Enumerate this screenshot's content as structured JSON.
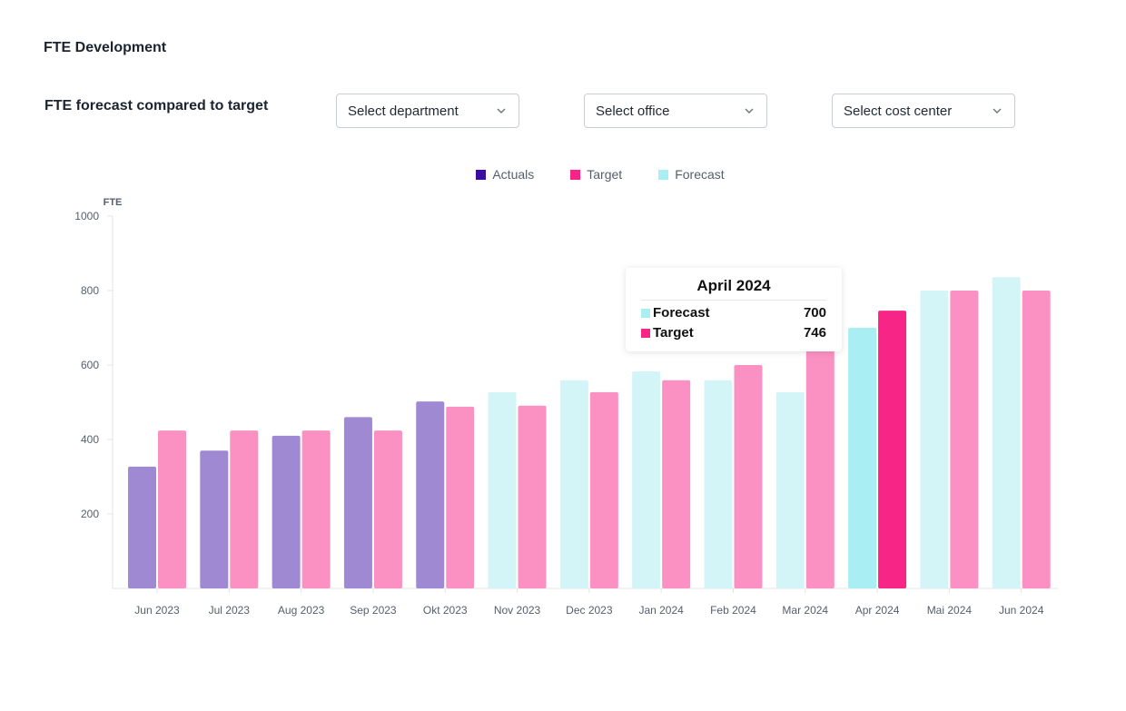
{
  "page_title": "FTE Development",
  "section_title": "FTE forecast compared to target",
  "filters": {
    "department": "Select department",
    "office": "Select office",
    "cost_center": "Select cost center"
  },
  "legend": [
    {
      "label": "Actuals",
      "color": "#3a0ca3"
    },
    {
      "label": "Target",
      "color": "#f72585"
    },
    {
      "label": "Forecast",
      "color": "#a9eef3"
    }
  ],
  "tooltip": {
    "title": "April 2024",
    "rows": [
      {
        "label": "Forecast",
        "value": "700",
        "color": "#a9eef3"
      },
      {
        "label": "Target",
        "value": "746",
        "color": "#f72585"
      }
    ]
  },
  "chart_data": {
    "type": "bar",
    "ylabel": "FTE",
    "ylim": [
      0,
      1000
    ],
    "yticks": [
      200,
      400,
      600,
      800,
      1000
    ],
    "grid": false,
    "legend_position": "top-center",
    "categories": [
      "Jun 2023",
      "Jul 2023",
      "Aug 2023",
      "Sep 2023",
      "Okt 2023",
      "Nov 2023",
      "Dec 2023",
      "Jan 2024",
      "Feb 2024",
      "Mar 2024",
      "Apr 2024",
      "Mai 2024",
      "Jun 2024"
    ],
    "series": [
      {
        "name": "Actuals",
        "values": [
          327,
          370,
          410,
          460,
          502,
          null,
          null,
          null,
          null,
          null,
          null,
          null,
          null
        ]
      },
      {
        "name": "Forecast",
        "values": [
          null,
          null,
          null,
          null,
          null,
          527,
          559,
          583,
          559,
          527,
          700,
          800,
          836
        ]
      },
      {
        "name": "Target",
        "values": [
          424,
          424,
          424,
          424,
          488,
          491,
          527,
          559,
          600,
          640,
          746,
          800,
          800
        ]
      }
    ],
    "highlighted_category": "Apr 2024",
    "colors": {
      "actuals": "#9f89d3",
      "target": "#fb91c2",
      "forecast": "#d4f5f7",
      "forecast_highlight": "#a9eef3",
      "target_highlight": "#f72585"
    }
  }
}
